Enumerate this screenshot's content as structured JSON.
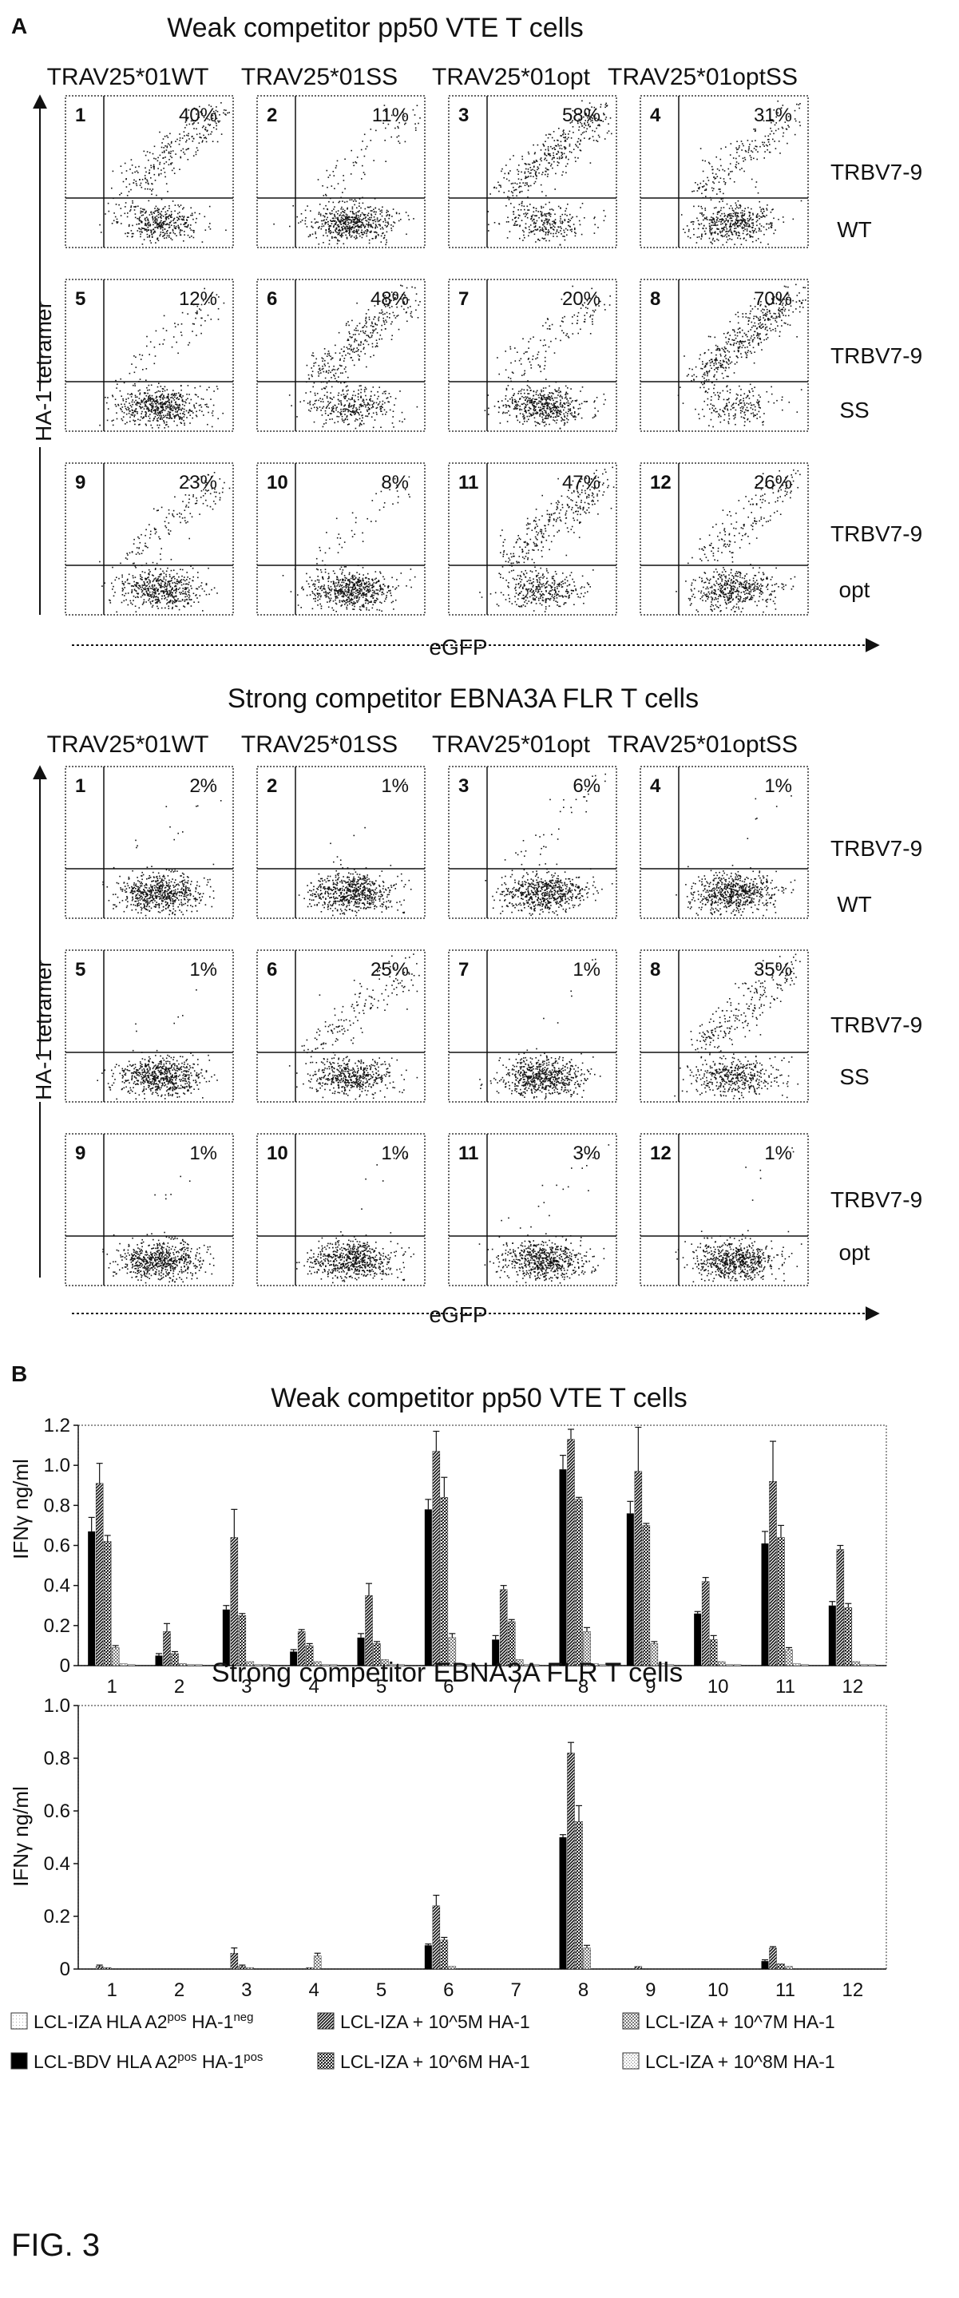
{
  "figure_label": "FIG. 3",
  "colors": {
    "ink": "#111111",
    "panel_border": "#555555",
    "bar_black": "#000000"
  },
  "chart_data": [
    {
      "type": "scatter",
      "panel": "A",
      "title": "Weak competitor pp50 VTE T cells",
      "xlabel": "eGFP",
      "ylabel": "HA-1 tetramer",
      "column_headers": [
        "TRAV25*01WT",
        "TRAV25*01SS",
        "TRAV25*01opt",
        "TRAV25*01optSS"
      ],
      "row_labels": [
        [
          "TRBV7-9",
          "WT"
        ],
        [
          "TRBV7-9",
          "SS"
        ],
        [
          "TRBV7-9",
          "opt"
        ]
      ],
      "subplots": [
        {
          "id": "1",
          "pct": "40%",
          "upper_fraction": 0.4
        },
        {
          "id": "2",
          "pct": "11%",
          "upper_fraction": 0.11
        },
        {
          "id": "3",
          "pct": "58%",
          "upper_fraction": 0.58
        },
        {
          "id": "4",
          "pct": "31%",
          "upper_fraction": 0.31
        },
        {
          "id": "5",
          "pct": "12%",
          "upper_fraction": 0.12
        },
        {
          "id": "6",
          "pct": "48%",
          "upper_fraction": 0.48
        },
        {
          "id": "7",
          "pct": "20%",
          "upper_fraction": 0.2
        },
        {
          "id": "8",
          "pct": "70%",
          "upper_fraction": 0.7
        },
        {
          "id": "9",
          "pct": "23%",
          "upper_fraction": 0.23
        },
        {
          "id": "10",
          "pct": "8%",
          "upper_fraction": 0.08
        },
        {
          "id": "11",
          "pct": "47%",
          "upper_fraction": 0.47
        },
        {
          "id": "12",
          "pct": "26%",
          "upper_fraction": 0.26
        }
      ]
    },
    {
      "type": "scatter",
      "panel": "",
      "title": "Strong competitor EBNA3A FLR T cells",
      "xlabel": "eGFP",
      "ylabel": "HA-1 tetramer",
      "column_headers": [
        "TRAV25*01WT",
        "TRAV25*01SS",
        "TRAV25*01opt",
        "TRAV25*01optSS"
      ],
      "row_labels": [
        [
          "TRBV7-9",
          "WT"
        ],
        [
          "TRBV7-9",
          "SS"
        ],
        [
          "TRBV7-9",
          "opt"
        ]
      ],
      "subplots": [
        {
          "id": "1",
          "pct": "2%",
          "upper_fraction": 0.02
        },
        {
          "id": "2",
          "pct": "1%",
          "upper_fraction": 0.01
        },
        {
          "id": "3",
          "pct": "6%",
          "upper_fraction": 0.06
        },
        {
          "id": "4",
          "pct": "1%",
          "upper_fraction": 0.01
        },
        {
          "id": "5",
          "pct": "1%",
          "upper_fraction": 0.01
        },
        {
          "id": "6",
          "pct": "25%",
          "upper_fraction": 0.25
        },
        {
          "id": "7",
          "pct": "1%",
          "upper_fraction": 0.01
        },
        {
          "id": "8",
          "pct": "35%",
          "upper_fraction": 0.35
        },
        {
          "id": "9",
          "pct": "1%",
          "upper_fraction": 0.01
        },
        {
          "id": "10",
          "pct": "1%",
          "upper_fraction": 0.01
        },
        {
          "id": "11",
          "pct": "3%",
          "upper_fraction": 0.03
        },
        {
          "id": "12",
          "pct": "1%",
          "upper_fraction": 0.01
        }
      ]
    },
    {
      "type": "bar",
      "panel": "B",
      "title": "Weak competitor pp50 VTE T cells",
      "xlabel": "",
      "ylabel": "IFNγ ng/ml",
      "ylim": [
        0,
        1.2
      ],
      "yticks": [
        "0",
        "0.2",
        "0.4",
        "0.6",
        "0.8",
        "1.0",
        "1.2"
      ],
      "categories": [
        "1",
        "2",
        "3",
        "4",
        "5",
        "6",
        "7",
        "8",
        "9",
        "10",
        "11",
        "12"
      ],
      "grid": false,
      "series": [
        {
          "name": "LCL-BDV HLA A2pos HA-1pos",
          "values": [
            0.67,
            0.05,
            0.28,
            0.07,
            0.14,
            0.78,
            0.13,
            0.98,
            0.76,
            0.26,
            0.61,
            0.3
          ],
          "errors": [
            0.07,
            0.01,
            0.02,
            0.01,
            0.02,
            0.05,
            0.02,
            0.07,
            0.06,
            0.01,
            0.06,
            0.02
          ]
        },
        {
          "name": "LCL-IZA + 10^5M HA-1",
          "values": [
            0.91,
            0.17,
            0.64,
            0.17,
            0.35,
            1.07,
            0.38,
            1.13,
            0.97,
            0.42,
            0.92,
            0.58
          ],
          "errors": [
            0.1,
            0.04,
            0.14,
            0.01,
            0.06,
            0.1,
            0.02,
            0.05,
            0.22,
            0.02,
            0.2,
            0.02
          ]
        },
        {
          "name": "LCL-IZA + 10^6M HA-1",
          "values": [
            0.62,
            0.06,
            0.25,
            0.1,
            0.11,
            0.84,
            0.22,
            0.83,
            0.7,
            0.13,
            0.64,
            0.29
          ],
          "errors": [
            0.03,
            0.01,
            0.01,
            0.01,
            0.01,
            0.1,
            0.01,
            0.01,
            0.01,
            0.02,
            0.06,
            0.02
          ]
        },
        {
          "name": "LCL-IZA + 10^7M HA-1",
          "values": [
            0.09,
            0.01,
            0.02,
            0.02,
            0.03,
            0.14,
            0.03,
            0.17,
            0.11,
            0.02,
            0.08,
            0.02
          ],
          "errors": [
            0.01,
            0,
            0,
            0,
            0,
            0.02,
            0,
            0.02,
            0.01,
            0,
            0.01,
            0
          ]
        },
        {
          "name": "LCL-IZA + 10^8M HA-1",
          "values": [
            0.01,
            0.005,
            0.005,
            0.005,
            0.005,
            0.01,
            0.005,
            0.01,
            0.01,
            0.005,
            0.01,
            0.005
          ],
          "errors": [
            0,
            0,
            0,
            0,
            0,
            0,
            0,
            0,
            0,
            0,
            0,
            0
          ]
        },
        {
          "name": "LCL-IZA HLA A2pos HA-1neg",
          "values": [
            0.005,
            0.005,
            0.005,
            0.005,
            0.005,
            0.005,
            0.005,
            0.005,
            0.005,
            0.005,
            0.005,
            0.005
          ],
          "errors": [
            0,
            0,
            0,
            0,
            0,
            0,
            0,
            0,
            0,
            0,
            0,
            0
          ]
        }
      ]
    },
    {
      "type": "bar",
      "panel": "",
      "title": "Strong competitor EBNA3A FLR T cells",
      "xlabel": "",
      "ylabel": "IFNγ ng/ml",
      "ylim": [
        0,
        1.0
      ],
      "yticks": [
        "0",
        "0.2",
        "0.4",
        "0.6",
        "0.8",
        "1.0"
      ],
      "categories": [
        "1",
        "2",
        "3",
        "4",
        "5",
        "6",
        "7",
        "8",
        "9",
        "10",
        "11",
        "12"
      ],
      "grid": false,
      "series": [
        {
          "name": "LCL-BDV HLA A2pos HA-1pos",
          "values": [
            0,
            0,
            0,
            0,
            0,
            0.09,
            0,
            0.5,
            0,
            0,
            0.03,
            0
          ],
          "errors": [
            0,
            0,
            0,
            0,
            0,
            0.005,
            0,
            0.01,
            0,
            0,
            0.005,
            0
          ]
        },
        {
          "name": "LCL-IZA + 10^5M HA-1",
          "values": [
            0.01,
            0,
            0.06,
            0,
            0,
            0.24,
            0,
            0.82,
            0.01,
            0,
            0.08,
            0
          ],
          "errors": [
            0.005,
            0,
            0.02,
            0,
            0,
            0.04,
            0,
            0.04,
            0,
            0,
            0.005,
            0
          ]
        },
        {
          "name": "LCL-IZA + 10^6M HA-1",
          "values": [
            0.005,
            0,
            0.01,
            0.005,
            0,
            0.11,
            0,
            0.56,
            0,
            0,
            0.02,
            0
          ],
          "errors": [
            0,
            0,
            0.005,
            0,
            0,
            0.01,
            0,
            0.06,
            0,
            0,
            0,
            0
          ]
        },
        {
          "name": "LCL-IZA + 10^7M HA-1",
          "values": [
            0,
            0,
            0.005,
            0.05,
            0,
            0.01,
            0,
            0.08,
            0,
            0,
            0.01,
            0
          ],
          "errors": [
            0,
            0,
            0,
            0.01,
            0,
            0,
            0,
            0.01,
            0,
            0,
            0,
            0
          ]
        },
        {
          "name": "LCL-IZA + 10^8M HA-1",
          "values": [
            0,
            0,
            0,
            0,
            0,
            0,
            0,
            0,
            0,
            0,
            0,
            0
          ],
          "errors": [
            0,
            0,
            0,
            0,
            0,
            0,
            0,
            0,
            0,
            0,
            0,
            0
          ]
        },
        {
          "name": "LCL-IZA HLA A2pos HA-1neg",
          "values": [
            0,
            0,
            0,
            0,
            0,
            0,
            0,
            0,
            0,
            0,
            0,
            0
          ],
          "errors": [
            0,
            0,
            0,
            0,
            0,
            0,
            0,
            0,
            0,
            0,
            0,
            0
          ]
        }
      ]
    }
  ],
  "legend": [
    {
      "key": "neg",
      "label": "LCL-IZA HLA A2",
      "sup1": "pos",
      "mid": " HA-1",
      "sup2": "neg",
      "suffix": "",
      "pattern": "p-neg"
    },
    {
      "key": "1e5",
      "label": "LCL-IZA + 10^5M HA-1",
      "sup1": "",
      "mid": "",
      "sup2": "",
      "suffix": "",
      "pattern": "p-5"
    },
    {
      "key": "1e7",
      "label": "LCL-IZA + 10^7M HA-1",
      "sup1": "",
      "mid": "",
      "sup2": "",
      "suffix": "",
      "pattern": "p-7"
    },
    {
      "key": "pos",
      "label": "LCL-BDV HLA A2",
      "sup1": "pos",
      "mid": " HA-1",
      "sup2": "pos",
      "suffix": "",
      "pattern": "p-black"
    },
    {
      "key": "1e6",
      "label": "LCL-IZA + 10^6M HA-1",
      "sup1": "",
      "mid": "",
      "sup2": "",
      "suffix": "",
      "pattern": "p-6"
    },
    {
      "key": "1e8",
      "label": "LCL-IZA + 10^8M HA-1",
      "sup1": "",
      "mid": "",
      "sup2": "",
      "suffix": "",
      "pattern": "p-8"
    }
  ]
}
